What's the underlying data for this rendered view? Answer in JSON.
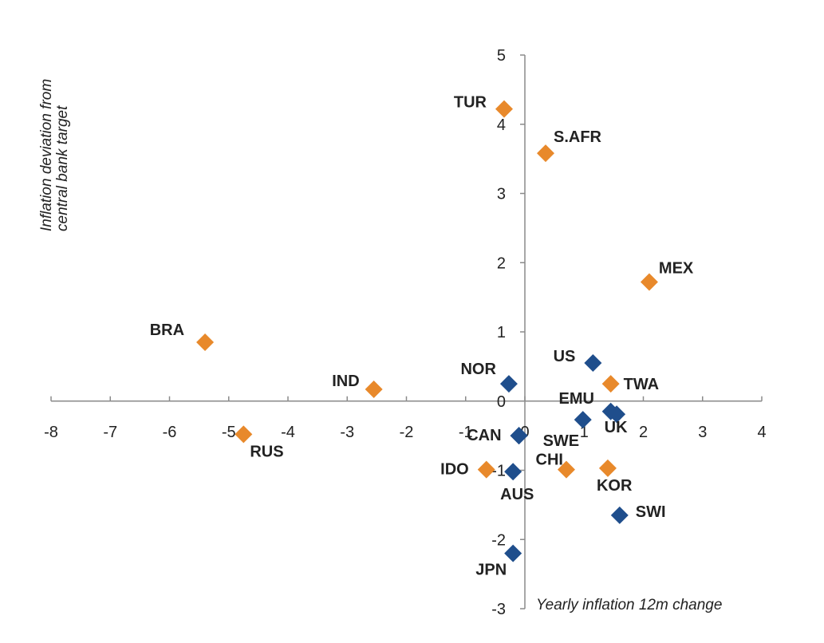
{
  "chart_data": {
    "type": "scatter",
    "xlabel": "Yearly inflation 12m change",
    "ylabel": [
      "Inflation deviation from",
      "central bank target"
    ],
    "xlim": [
      -8,
      4
    ],
    "ylim": [
      -3,
      5
    ],
    "x_ticks": [
      -8,
      -7,
      -6,
      -5,
      -4,
      -3,
      -2,
      -1,
      0,
      1,
      2,
      3,
      4
    ],
    "y_ticks": [
      -3,
      -2,
      -1,
      0,
      1,
      2,
      3,
      4,
      5
    ],
    "grid": false,
    "legend": "none",
    "colors": {
      "orange": "#E8892B",
      "blue": "#1F4E8C",
      "axis": "#8a8a8a",
      "text": "#222222"
    },
    "series": [
      {
        "color": "#E8892B",
        "points": [
          {
            "label": "TUR",
            "x": -0.35,
            "y": 4.22
          },
          {
            "label": "S.AFR",
            "x": 0.35,
            "y": 3.58
          },
          {
            "label": "MEX",
            "x": 2.1,
            "y": 1.72
          },
          {
            "label": "BRA",
            "x": -5.4,
            "y": 0.85
          },
          {
            "label": "IND",
            "x": -2.55,
            "y": 0.17
          },
          {
            "label": "TWA",
            "x": 1.45,
            "y": 0.25
          },
          {
            "label": "RUS",
            "x": -4.75,
            "y": -0.48
          },
          {
            "label": "IDO",
            "x": -0.65,
            "y": -0.99
          },
          {
            "label": "CHI",
            "x": 0.7,
            "y": -0.99
          },
          {
            "label": "KOR",
            "x": 1.4,
            "y": -0.97
          }
        ]
      },
      {
        "color": "#1F4E8C",
        "points": [
          {
            "label": "US",
            "x": 1.15,
            "y": 0.55
          },
          {
            "label": "NOR",
            "x": -0.27,
            "y": 0.25
          },
          {
            "label": "EMU",
            "x": 0.98,
            "y": -0.27
          },
          {
            "label": "UK",
            "x": 1.45,
            "y": -0.15
          },
          {
            "label": "",
            "x": 1.55,
            "y": -0.19
          },
          {
            "label": "CAN",
            "x": -0.1,
            "y": -0.5
          },
          {
            "label": "SWE",
            "x": -0.1,
            "y": -0.5
          },
          {
            "label": "AUS",
            "x": -0.2,
            "y": -1.02
          },
          {
            "label": "SWI",
            "x": 1.6,
            "y": -1.65
          },
          {
            "label": "JPN",
            "x": -0.2,
            "y": -2.2
          }
        ]
      }
    ]
  }
}
